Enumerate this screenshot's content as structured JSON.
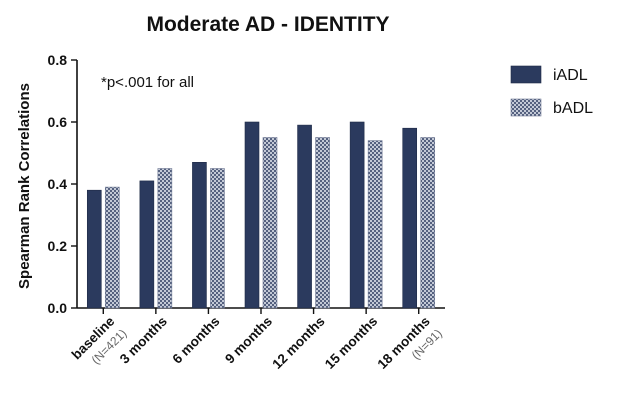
{
  "chart_data": {
    "type": "bar",
    "title": "Moderate AD - IDENTITY",
    "xlabel": "",
    "ylabel": "Spearman  Rank  Correlations",
    "ylim": [
      0,
      0.8
    ],
    "yticks": [
      "0.0",
      "0.2",
      "0.4",
      "0.6",
      "0.8"
    ],
    "categories": [
      "baseline",
      "3 months",
      "6 months",
      "9 months",
      "12 months",
      "15 months",
      "18 months"
    ],
    "category_sublabels": [
      "(N=421)",
      "",
      "",
      "",
      "",
      "",
      "(N=91)"
    ],
    "annotation": "*p<.001 for all",
    "grid": false,
    "legend_position": "top-right",
    "series": [
      {
        "name": "iADL",
        "color": "#2b3a5e",
        "pattern": "solid",
        "values": [
          0.38,
          0.41,
          0.47,
          0.6,
          0.59,
          0.6,
          0.58
        ]
      },
      {
        "name": "bADL",
        "color": "#8e98ae",
        "pattern": "checkered",
        "values": [
          0.39,
          0.45,
          0.45,
          0.55,
          0.55,
          0.54,
          0.55
        ]
      }
    ]
  }
}
